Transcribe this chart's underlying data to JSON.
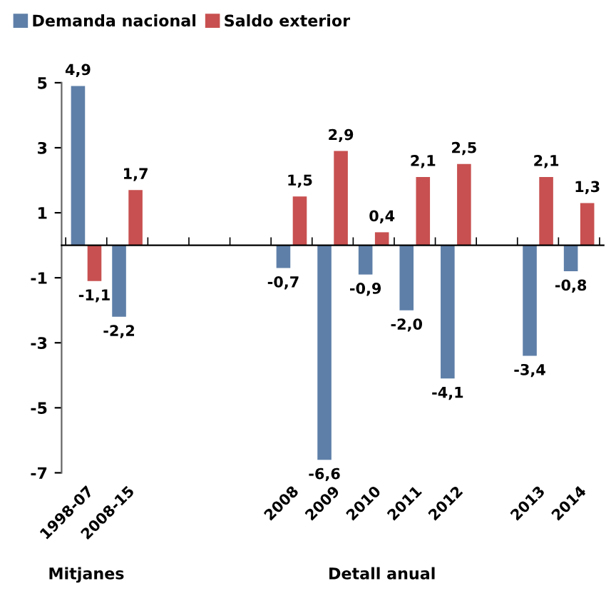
{
  "chart_data": {
    "type": "bar",
    "categories": [
      "1998-07",
      "2008-15",
      null,
      null,
      null,
      "2008",
      "2009",
      "2010",
      "2011",
      "2012",
      null,
      "2013",
      "2014"
    ],
    "series": [
      {
        "name": "Demanda nacional",
        "color": "#5e7fa8",
        "values": [
          4.9,
          -2.2,
          null,
          null,
          null,
          -0.7,
          -6.6,
          -0.9,
          -2.0,
          -4.1,
          null,
          -3.4,
          -0.8
        ],
        "value_labels": [
          "4,9",
          "-2,2",
          null,
          null,
          null,
          "-0,7",
          "-6,6",
          "-0,9",
          "-2,0",
          "-4,1",
          null,
          "-3,4",
          "-0,8"
        ]
      },
      {
        "name": "Saldo exterior",
        "color": "#c85050",
        "values": [
          -1.1,
          1.7,
          null,
          null,
          null,
          1.5,
          2.9,
          0.4,
          2.1,
          2.5,
          null,
          2.1,
          1.3
        ],
        "value_labels": [
          "-1,1",
          "1,7",
          null,
          null,
          null,
          "1,5",
          "2,9",
          "0,4",
          "2,1",
          "2,5",
          null,
          "2,1",
          "1,3"
        ]
      }
    ],
    "ylim": [
      -7,
      5
    ],
    "yticks": [
      -7,
      -5,
      -3,
      -1,
      1,
      3,
      5
    ],
    "grid": false,
    "legend": "top left",
    "annotations": [
      "Mitjanes",
      "Detall anual"
    ]
  }
}
